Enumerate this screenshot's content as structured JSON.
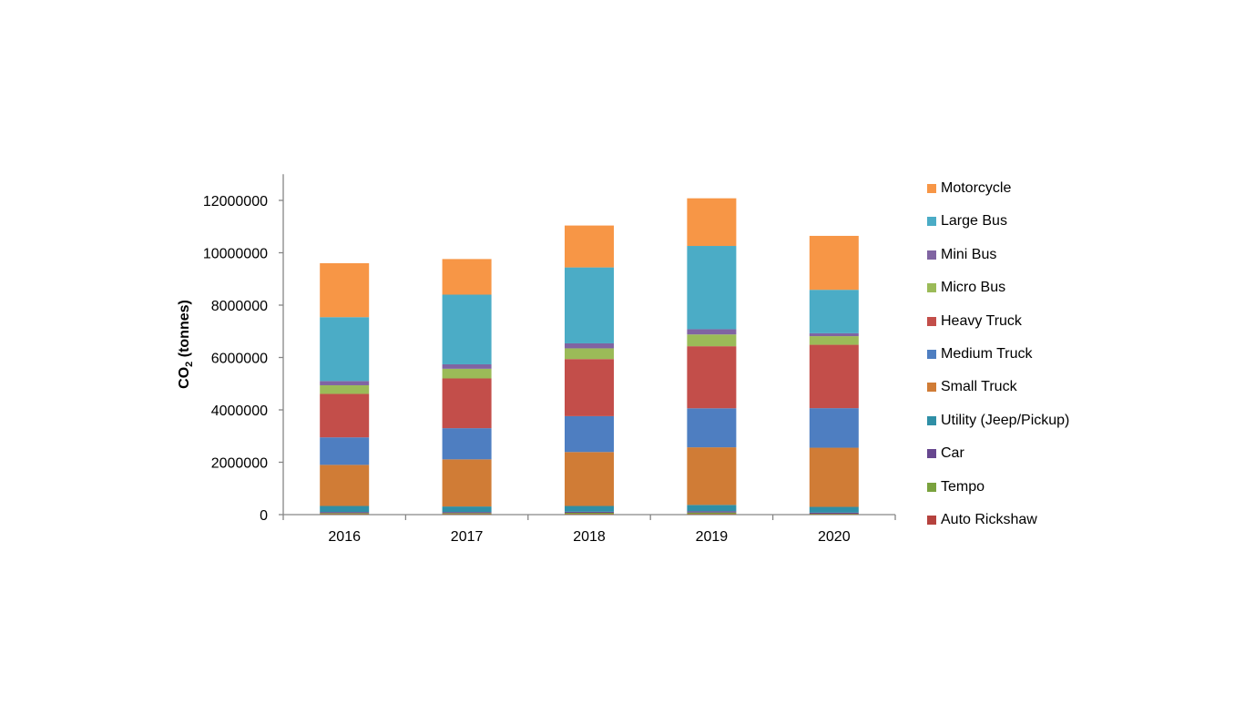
{
  "chart_data": {
    "type": "bar",
    "stacked": true,
    "categories": [
      "2016",
      "2017",
      "2018",
      "2019",
      "2020"
    ],
    "ylabel": "CO",
    "ylabel_subscript": "2",
    "ylabel_suffix": " (tonnes)",
    "xlabel": "",
    "title": "",
    "ylim": [
      0,
      13000000
    ],
    "yticks": [
      0,
      2000000,
      4000000,
      6000000,
      8000000,
      10000000,
      12000000
    ],
    "grid": false,
    "legend_position": "right",
    "series": [
      {
        "name": "Auto Rickshaw",
        "color": "#B5423E",
        "values": [
          20000,
          20000,
          20000,
          20000,
          15000
        ]
      },
      {
        "name": "Tempo",
        "color": "#7AA23E",
        "values": [
          40000,
          40000,
          50000,
          60000,
          20000
        ]
      },
      {
        "name": "Car",
        "color": "#67478F",
        "values": [
          40000,
          40000,
          40000,
          50000,
          40000
        ]
      },
      {
        "name": "Utility (Jeep/Pickup)",
        "color": "#2F8FA6",
        "values": [
          230000,
          210000,
          220000,
          240000,
          220000
        ]
      },
      {
        "name": "Small Truck",
        "color": "#D07C36",
        "values": [
          1570000,
          1800000,
          2060000,
          2200000,
          2260000
        ]
      },
      {
        "name": "Medium Truck",
        "color": "#4E7EC1",
        "values": [
          1050000,
          1190000,
          1370000,
          1490000,
          1510000
        ]
      },
      {
        "name": "Heavy Truck",
        "color": "#C34E4A",
        "values": [
          1660000,
          1900000,
          2180000,
          2370000,
          2420000
        ]
      },
      {
        "name": "Micro Bus",
        "color": "#9BBB58",
        "values": [
          330000,
          370000,
          410000,
          450000,
          330000
        ]
      },
      {
        "name": "Mini Bus",
        "color": "#8064A2",
        "values": [
          160000,
          170000,
          190000,
          200000,
          110000
        ]
      },
      {
        "name": "Large Bus",
        "color": "#4BACC6",
        "values": [
          2440000,
          2660000,
          2900000,
          3180000,
          1660000
        ]
      },
      {
        "name": "Motorcycle",
        "color": "#F79646",
        "values": [
          2060000,
          1360000,
          1600000,
          1820000,
          2060000
        ]
      }
    ]
  }
}
